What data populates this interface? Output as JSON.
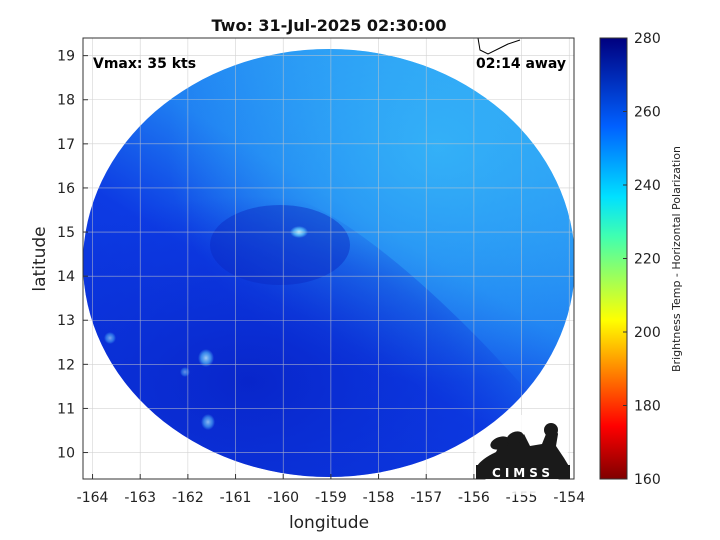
{
  "title": "Two: 31-Jul-2025 02:30:00",
  "annotations": {
    "vmax": "Vmax: 35 kts",
    "time_away": "02:14 away"
  },
  "axes": {
    "xlabel": "longitude",
    "ylabel": "latitude",
    "xticks": [
      -164,
      -163,
      -162,
      -161,
      -160,
      -159,
      -158,
      -157,
      -156,
      -155,
      -154
    ],
    "yticks": [
      10,
      11,
      12,
      13,
      14,
      15,
      16,
      17,
      18,
      19
    ],
    "xlim": [
      -164.2,
      -153.9
    ],
    "ylim": [
      9.4,
      19.4
    ],
    "grid": true
  },
  "colorbar": {
    "label": "Brightness Temp - Horizontal Polarization",
    "ticks": [
      160,
      180,
      200,
      220,
      240,
      260,
      280
    ],
    "range": [
      160,
      280
    ],
    "colormap": "jet"
  },
  "logo": {
    "text": "CIMSS"
  },
  "colors": {
    "swath_dark": "#0a2bd8",
    "swath_mid": "#1560f0",
    "swath_light": "#2aa0f6",
    "coast": "#000000"
  },
  "chart_data": {
    "type": "heatmap",
    "title": "Two: 31-Jul-2025 02:30:00",
    "xlabel": "longitude",
    "ylabel": "latitude",
    "xlim": [
      -164.2,
      -153.9
    ],
    "ylim": [
      9.4,
      19.4
    ],
    "clim": [
      160,
      280
    ],
    "colorbar_label": "Brightness Temp - Horizontal Polarization",
    "swath_center": {
      "lon": -159.1,
      "lat": 14.2
    },
    "features": [
      {
        "region": "southwest",
        "tb_approx": 262
      },
      {
        "region": "north and east",
        "tb_approx": 245
      },
      {
        "lon": -159.9,
        "lat": 15.0,
        "tb_approx": 238
      },
      {
        "lon": -161.6,
        "lat": 12.1,
        "tb_approx": 240
      },
      {
        "lon": -161.4,
        "lat": 10.7,
        "tb_approx": 240
      }
    ]
  }
}
